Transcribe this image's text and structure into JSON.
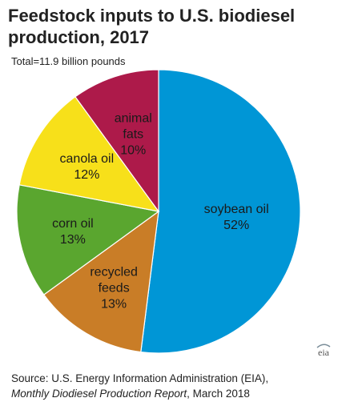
{
  "chart_data": {
    "type": "pie",
    "title_lines": [
      "Feedstock inputs to U.S. biodiesel",
      "production, 2017"
    ],
    "subtitle": "Total=11.9 billion pounds",
    "slices": [
      {
        "label_lines": [
          "soybean oil"
        ],
        "pct_label": "52%",
        "value": 52,
        "color": "#0096d6",
        "text_color": "#1a1a1a"
      },
      {
        "label_lines": [
          "recycled",
          "feeds"
        ],
        "pct_label": "13%",
        "value": 13,
        "color": "#c97d27",
        "text_color": "#1a1a1a"
      },
      {
        "label_lines": [
          "corn oil"
        ],
        "pct_label": "13%",
        "value": 13,
        "color": "#5aa62f",
        "text_color": "#1a1a1a"
      },
      {
        "label_lines": [
          "canola oil"
        ],
        "pct_label": "12%",
        "value": 12,
        "color": "#f7e01a",
        "text_color": "#1a1a1a"
      },
      {
        "label_lines": [
          "animal",
          "fats"
        ],
        "pct_label": "10%",
        "value": 10,
        "color": "#ad1a4a",
        "text_color": "#1a1a1a"
      }
    ]
  },
  "source": {
    "line1": "Source: U.S. Energy Information Administration (EIA),",
    "report": "Monthly Diodiesel Production Report",
    "date": ", March 2018"
  },
  "logo_text": "eia",
  "colors": {
    "background": "#ffffff",
    "slice_border": "#ffffff"
  }
}
